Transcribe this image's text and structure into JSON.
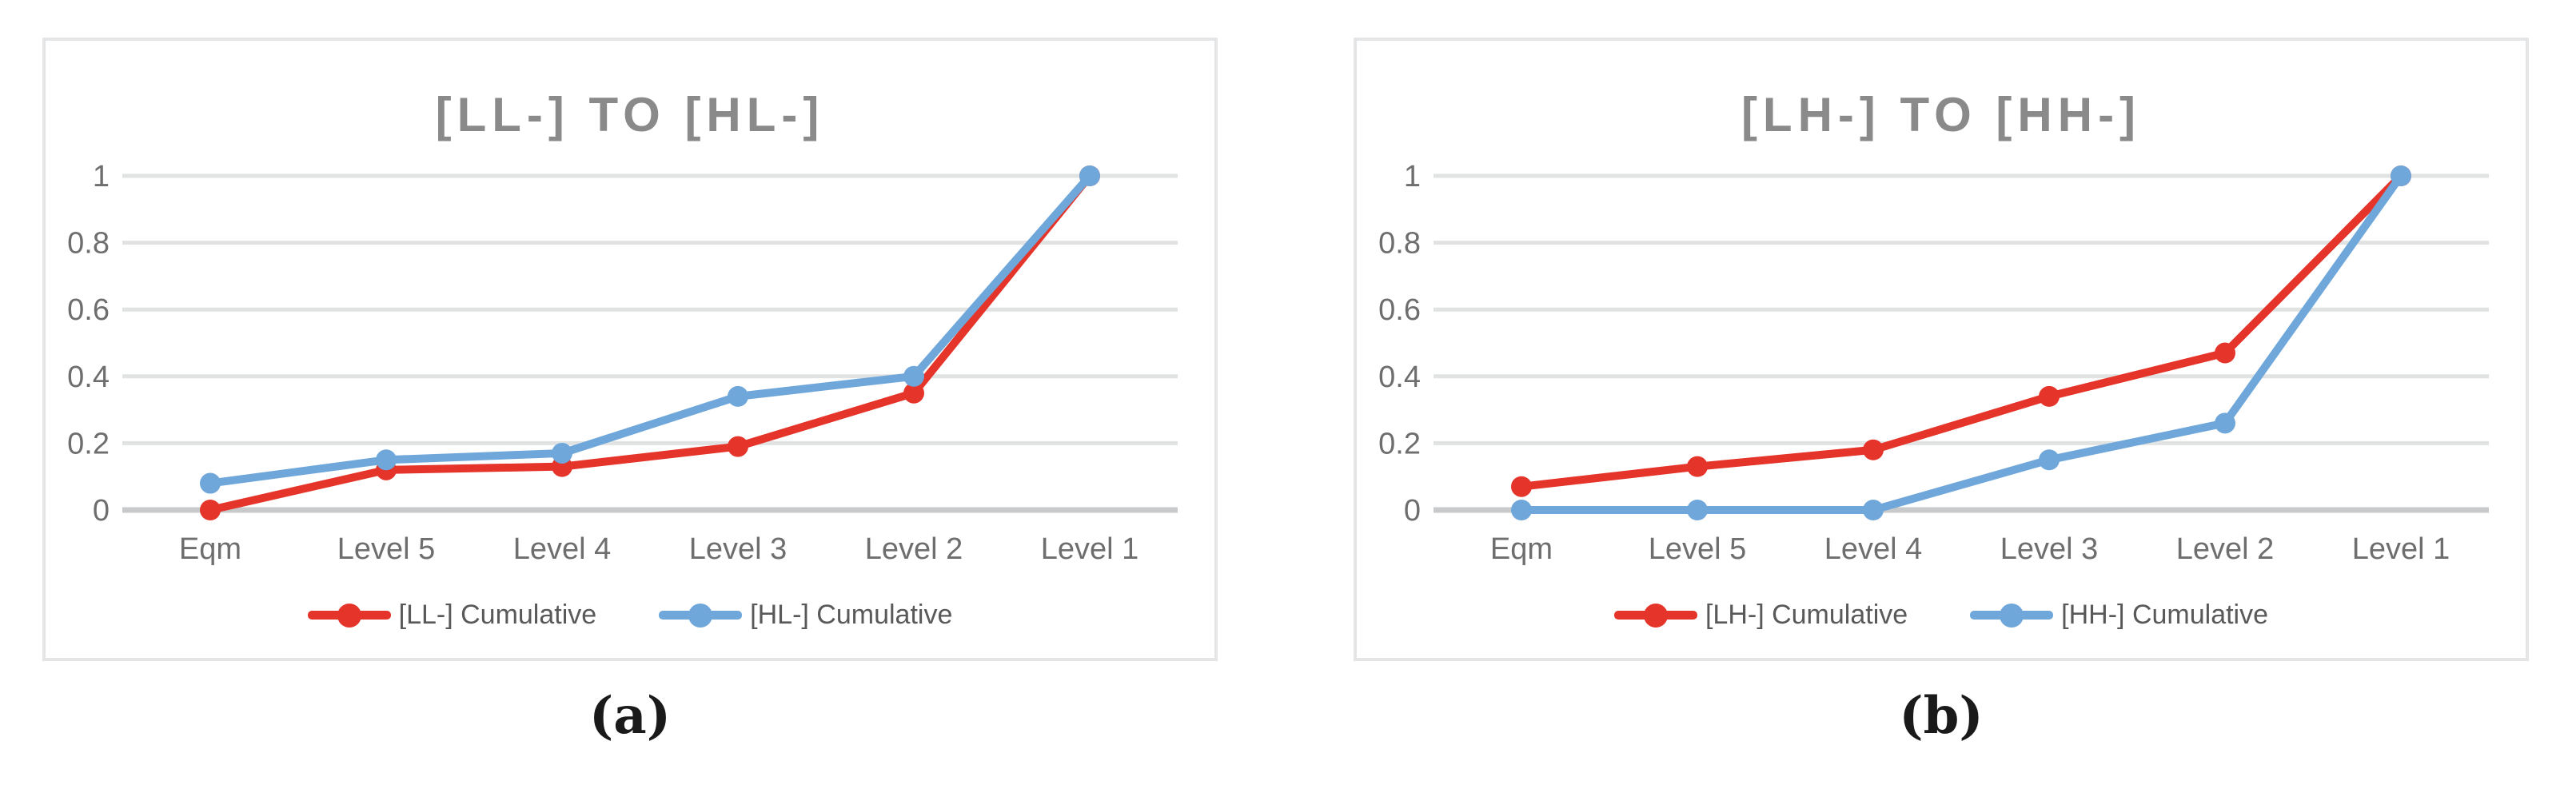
{
  "style": {
    "title_color": "#8a8a8a",
    "axis_label_color": "#6e6e6e",
    "legend_text_color": "#595959",
    "gridline_color": "#e1e3e3",
    "zero_axis_color": "#c7c9ca",
    "frame_border_color": "#e3e5e6",
    "series_red": "#e5342a",
    "series_blue": "#6fa7da"
  },
  "chart_data": [
    {
      "type": "line",
      "title": "[LL-] TO [HL-]",
      "caption": "(a)",
      "categories": [
        "Eqm",
        "Level 5",
        "Level 4",
        "Level 3",
        "Level 2",
        "Level 1"
      ],
      "xlabel": "",
      "ylabel": "",
      "ylim": [
        0,
        1
      ],
      "yticks": [
        0,
        0.2,
        0.4,
        0.6,
        0.8,
        1
      ],
      "grid": true,
      "legend_position": "bottom",
      "series": [
        {
          "name": "[LL-] Cumulative",
          "color": "#e5342a",
          "values": [
            0,
            0.12,
            0.13,
            0.19,
            0.35,
            1
          ]
        },
        {
          "name": "[HL-] Cumulative",
          "color": "#6fa7da",
          "values": [
            0.08,
            0.15,
            0.17,
            0.34,
            0.4,
            1
          ]
        }
      ]
    },
    {
      "type": "line",
      "title": "[LH-] TO [HH-]",
      "caption": "(b)",
      "categories": [
        "Eqm",
        "Level 5",
        "Level 4",
        "Level 3",
        "Level 2",
        "Level 1"
      ],
      "xlabel": "",
      "ylabel": "",
      "ylim": [
        0,
        1
      ],
      "yticks": [
        0,
        0.2,
        0.4,
        0.6,
        0.8,
        1
      ],
      "grid": true,
      "legend_position": "bottom",
      "series": [
        {
          "name": "[LH-] Cumulative",
          "color": "#e5342a",
          "values": [
            0.07,
            0.13,
            0.18,
            0.34,
            0.47,
            1
          ]
        },
        {
          "name": "[HH-] Cumulative",
          "color": "#6fa7da",
          "values": [
            0,
            0,
            0,
            0.15,
            0.26,
            1
          ]
        }
      ]
    }
  ]
}
